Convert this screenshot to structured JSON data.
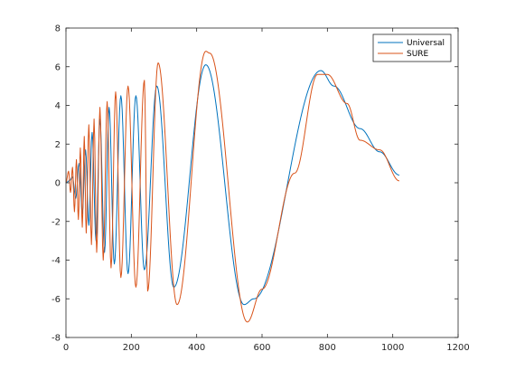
{
  "chart_data": {
    "type": "line",
    "xlim": [
      0,
      1200
    ],
    "ylim": [
      -8,
      8
    ],
    "x_ticks": [
      0,
      200,
      400,
      600,
      800,
      1000,
      1200
    ],
    "y_ticks": [
      -8,
      -6,
      -4,
      -2,
      0,
      2,
      4,
      6,
      8
    ],
    "grid": false,
    "legend_position": "top-right",
    "series": [
      {
        "name": "Universal",
        "color": "#0072BD",
        "anchors": [
          [
            0,
            0.0
          ],
          [
            10,
            0.1
          ],
          [
            20,
            0.3
          ],
          [
            30,
            -0.8
          ],
          [
            40,
            1.0
          ],
          [
            50,
            -1.6
          ],
          [
            60,
            1.7
          ],
          [
            70,
            -2.2
          ],
          [
            80,
            2.6
          ],
          [
            92,
            -3.0
          ],
          [
            104,
            3.3
          ],
          [
            118,
            -3.6
          ],
          [
            132,
            3.9
          ],
          [
            148,
            -4.2
          ],
          [
            168,
            4.5
          ],
          [
            190,
            -4.7
          ],
          [
            214,
            4.5
          ],
          [
            240,
            -4.5
          ],
          [
            278,
            5.0
          ],
          [
            330,
            -5.4
          ],
          [
            428,
            6.1
          ],
          [
            545,
            -6.3
          ],
          [
            575,
            -6.0
          ],
          [
            780,
            5.8
          ],
          [
            820,
            5.0
          ],
          [
            900,
            2.8
          ],
          [
            960,
            1.6
          ],
          [
            1020,
            0.4
          ]
        ]
      },
      {
        "name": "SURE",
        "color": "#D95319",
        "anchors": [
          [
            0,
            0.0
          ],
          [
            8,
            0.6
          ],
          [
            14,
            -0.5
          ],
          [
            20,
            0.8
          ],
          [
            26,
            -1.5
          ],
          [
            32,
            1.2
          ],
          [
            38,
            -1.9
          ],
          [
            44,
            1.8
          ],
          [
            50,
            -2.3
          ],
          [
            56,
            2.4
          ],
          [
            62,
            -2.6
          ],
          [
            70,
            3.0
          ],
          [
            78,
            -3.2
          ],
          [
            86,
            3.3
          ],
          [
            94,
            -3.6
          ],
          [
            104,
            3.9
          ],
          [
            114,
            -4.0
          ],
          [
            126,
            4.2
          ],
          [
            138,
            -4.4
          ],
          [
            152,
            4.7
          ],
          [
            168,
            -4.9
          ],
          [
            190,
            5.0
          ],
          [
            214,
            -5.4
          ],
          [
            240,
            5.3
          ],
          [
            250,
            -5.6
          ],
          [
            282,
            6.2
          ],
          [
            340,
            -6.3
          ],
          [
            428,
            6.8
          ],
          [
            440,
            6.7
          ],
          [
            555,
            -7.2
          ],
          [
            600,
            -5.5
          ],
          [
            700,
            0.5
          ],
          [
            770,
            5.6
          ],
          [
            800,
            5.6
          ],
          [
            860,
            4.1
          ],
          [
            900,
            2.2
          ],
          [
            960,
            1.7
          ],
          [
            1020,
            0.1
          ]
        ]
      }
    ]
  }
}
